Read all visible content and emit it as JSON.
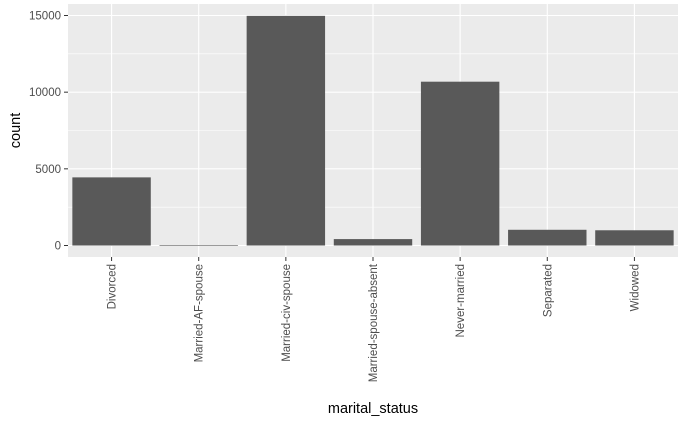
{
  "chart_data": {
    "type": "bar",
    "categories": [
      "Divorced",
      "Married-AF-spouse",
      "Married-civ-spouse",
      "Married-spouse-absent",
      "Never-married",
      "Separated",
      "Widowed"
    ],
    "values": [
      4443,
      23,
      14976,
      418,
      10683,
      1025,
      993
    ],
    "xlabel": "marital_status",
    "ylabel": "count",
    "ylim": [
      -750,
      15750
    ],
    "yticks": [
      0,
      5000,
      10000,
      15000
    ],
    "ytick_labels": [
      "0",
      "5000",
      "10000",
      "15000"
    ],
    "grid": true,
    "legend": "none",
    "colors": {
      "panel": "#ebebeb",
      "grid_major": "#ffffff",
      "bar": "#595959",
      "tick_label": "#4d4d4d",
      "axis_title": "#000000"
    }
  }
}
